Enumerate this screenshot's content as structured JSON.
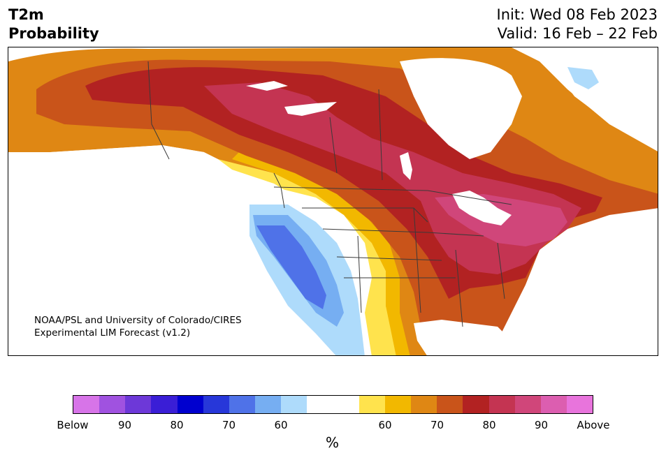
{
  "header": {
    "title_line1": "T2m",
    "title_line2": "Probability",
    "init": "Init: Wed 08 Feb 2023",
    "valid": "Valid: 16 Feb – 22 Feb"
  },
  "credit": {
    "line1": "NOAA/PSL and University of Colorado/CIRES",
    "line2": "Experimental LIM Forecast (v1.2)"
  },
  "colorbar": {
    "colors": [
      "#d774e8",
      "#a052e0",
      "#6d38d8",
      "#3a1ed6",
      "#0000cf",
      "#2737d9",
      "#4f72e8",
      "#76aef2",
      "#aedbfb",
      "#ffffff",
      "#ffffff",
      "#ffe34d",
      "#f2b800",
      "#df8714",
      "#c9541a",
      "#b22222",
      "#c43452",
      "#d0467a",
      "#dc5eb0",
      "#e874dc"
    ],
    "ticks": [
      "Below",
      "90",
      "80",
      "70",
      "60",
      "60",
      "70",
      "80",
      "90",
      "Above"
    ],
    "unit": "%"
  },
  "map": {
    "cold_colors": [
      "#aedbfb",
      "#76aef2",
      "#4f72e8"
    ],
    "warm_colors": [
      "#ffe34d",
      "#f2b800",
      "#df8714",
      "#c9541a",
      "#b22222",
      "#c43452",
      "#d0467a"
    ]
  }
}
